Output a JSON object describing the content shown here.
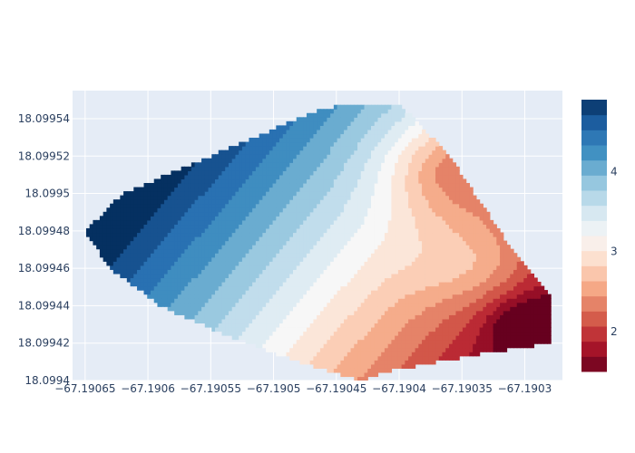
{
  "chart_data": {
    "type": "contour",
    "title": "",
    "xlabel": "",
    "ylabel": "",
    "xlim": [
      -67.19066,
      -67.19027
    ],
    "ylim": [
      18.0994,
      18.099555
    ],
    "x_ticks": [
      -67.19065,
      -67.1906,
      -67.19055,
      -67.1905,
      -67.19045,
      -67.1904,
      -67.19035,
      -67.1903
    ],
    "x_tick_labels": [
      "−67.19065",
      "−67.1906",
      "−67.19055",
      "−67.1905",
      "−67.19045",
      "−67.1904",
      "−67.19035",
      "−67.1903"
    ],
    "y_ticks": [
      18.0994,
      18.09942,
      18.09944,
      18.09946,
      18.09948,
      18.0995,
      18.09952,
      18.09954
    ],
    "y_tick_labels": [
      "18.0994",
      "18.09942",
      "18.09944",
      "18.09946",
      "18.09948",
      "18.0995",
      "18.09952",
      "18.09954"
    ],
    "colorbar": {
      "range": [
        1.5,
        4.9
      ],
      "ticks": [
        2,
        3,
        4
      ],
      "tick_labels": [
        "2",
        "3",
        "4"
      ],
      "colorscale": "RdBu",
      "colors": [
        "#67001f",
        "#b2182b",
        "#d6604d",
        "#f4a582",
        "#fddbc7",
        "#f7f7f7",
        "#d1e5f0",
        "#92c5de",
        "#4393c3",
        "#2166ac",
        "#053061"
      ]
    },
    "z_description": {
      "max_near": [
        -67.19065,
        18.09948
      ],
      "max_value": 4.8,
      "min_near": [
        -67.1903,
        18.09943
      ],
      "min_value": 1.6
    },
    "grid": true
  }
}
